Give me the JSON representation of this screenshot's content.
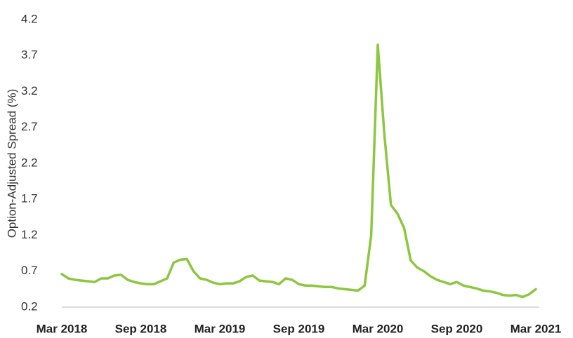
{
  "chart_data": {
    "type": "line",
    "y_label": "Option-Adjusted Spread (%)",
    "categories": [
      "Mar 2018",
      null,
      null,
      null,
      null,
      null,
      null,
      null,
      null,
      null,
      null,
      null,
      "Sep 2018",
      null,
      null,
      null,
      null,
      null,
      null,
      null,
      null,
      null,
      null,
      null,
      "Mar 2019",
      null,
      null,
      null,
      null,
      null,
      null,
      null,
      null,
      null,
      null,
      null,
      "Sep 2019",
      null,
      null,
      null,
      null,
      null,
      null,
      null,
      null,
      null,
      null,
      null,
      "Mar 2020",
      null,
      null,
      null,
      null,
      null,
      null,
      null,
      null,
      null,
      null,
      null,
      "Sep 2020",
      null,
      null,
      null,
      null,
      null,
      null,
      null,
      null,
      null,
      null,
      null,
      "Mar 2021"
    ],
    "series": [
      {
        "color": "#8dc63f",
        "values": [
          0.66,
          0.6,
          0.58,
          0.57,
          0.56,
          0.55,
          0.6,
          0.6,
          0.64,
          0.65,
          0.58,
          0.55,
          0.53,
          0.52,
          0.52,
          0.56,
          0.6,
          0.82,
          0.86,
          0.87,
          0.7,
          0.6,
          0.58,
          0.54,
          0.52,
          0.53,
          0.53,
          0.56,
          0.62,
          0.64,
          0.57,
          0.56,
          0.55,
          0.52,
          0.6,
          0.58,
          0.52,
          0.5,
          0.5,
          0.49,
          0.48,
          0.48,
          0.46,
          0.45,
          0.44,
          0.43,
          0.5,
          1.2,
          3.85,
          2.6,
          1.62,
          1.5,
          1.3,
          0.85,
          0.75,
          0.7,
          0.63,
          0.58,
          0.55,
          0.52,
          0.55,
          0.5,
          0.48,
          0.46,
          0.43,
          0.42,
          0.4,
          0.37,
          0.36,
          0.37,
          0.34,
          0.38,
          0.45
        ]
      }
    ],
    "ylim": [
      0.2,
      4.2
    ],
    "yticks": [
      0.2,
      0.7,
      1.2,
      1.7,
      2.2,
      2.7,
      3.2,
      3.7,
      4.2
    ],
    "grid": false
  }
}
